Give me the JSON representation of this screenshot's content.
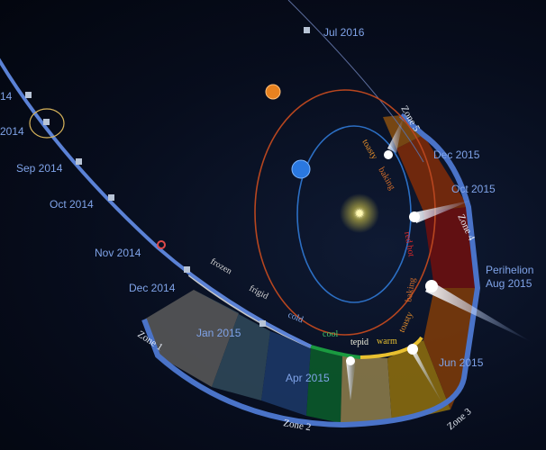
{
  "colors": {
    "background": "#050a18",
    "trajectory": "#5b82d6",
    "earth_orbit": "#2c6fc4",
    "mars_orbit": "#b8461f",
    "sun": "#f2e24a",
    "label": "#7fa3e8"
  },
  "dates": [
    "Jul 2016",
    "Sep 2014",
    "Oct 2014",
    "Nov 2014",
    "Dec 2014",
    "Jan 2015",
    "Apr 2015",
    "Jun 2015",
    "Dec 2015",
    "Oct 2015"
  ],
  "partial_labels": [
    "14",
    "2014"
  ],
  "perihelion": {
    "title": "Perihelion",
    "date": "Aug 2015"
  },
  "zones": [
    "Zone 1",
    "Zone 2",
    "Zone 3",
    "Zone 4",
    "Zone 5"
  ],
  "temperatures_inbound": [
    "frozen",
    "frigid",
    "cold",
    "cool",
    "tepid",
    "warm",
    "toasty",
    "baking",
    "red hot"
  ],
  "temperatures_outbound": [
    "baking",
    "toasty"
  ],
  "icons": [
    "spacecraft-icon",
    "comet-icon",
    "sun-icon",
    "earth-icon",
    "mars-icon",
    "landing-marker-icon"
  ]
}
